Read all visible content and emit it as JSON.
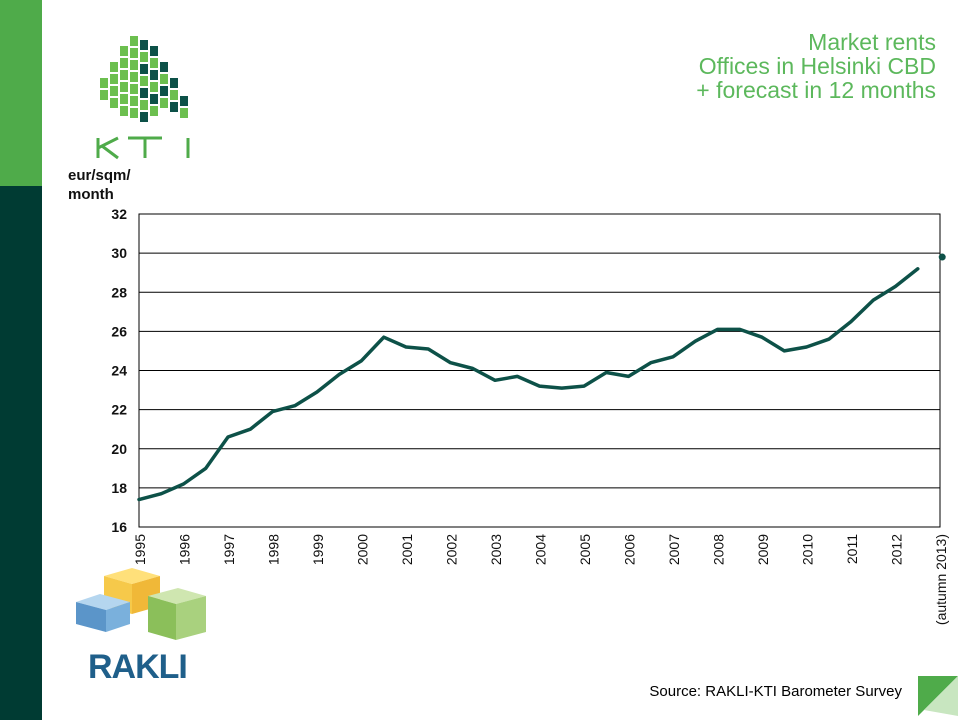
{
  "title": {
    "line1": "Market rents",
    "line2": "Offices in Helsinki CBD",
    "line3": "+ forecast in 12 months"
  },
  "ylabel": {
    "line1": "eur/sqm/",
    "line2": "month"
  },
  "source": "Source: RAKLI-KTI Barometer Survey",
  "logos": {
    "kti": "KTI",
    "rakli": "RAKLI"
  },
  "colors": {
    "line": "#0d5148",
    "title": "#5cb85c",
    "band_top": "#4fab4a",
    "band_bottom": "#003b33"
  },
  "chart_data": {
    "type": "line",
    "title": "Market rents Offices in Helsinki CBD + forecast in 12 months",
    "ylabel": "eur/sqm/month",
    "xlabel": "",
    "ylim": [
      16,
      32
    ],
    "yticks": [
      16,
      18,
      20,
      22,
      24,
      26,
      28,
      30,
      32
    ],
    "xlim": [
      1995,
      2013
    ],
    "grid": true,
    "categories": [
      "1995",
      "1996",
      "1997",
      "1998",
      "1999",
      "2000",
      "2001",
      "2002",
      "2003",
      "2004",
      "2005",
      "2006",
      "2007",
      "2008",
      "2009",
      "2010",
      "2011",
      "2012",
      "(autumn 2013)"
    ],
    "series": [
      {
        "name": "Market rent",
        "x": [
          1995.0,
          1995.5,
          1996.0,
          1996.5,
          1997.0,
          1997.5,
          1998.0,
          1998.5,
          1999.0,
          1999.5,
          2000.0,
          2000.5,
          2001.0,
          2001.5,
          2002.0,
          2002.5,
          2003.0,
          2003.5,
          2004.0,
          2004.5,
          2005.0,
          2005.5,
          2006.0,
          2006.5,
          2007.0,
          2007.5,
          2008.0,
          2008.5,
          2009.0,
          2009.5,
          2010.0,
          2010.5,
          2011.0,
          2011.5,
          2012.0,
          2012.5
        ],
        "values": [
          17.4,
          17.7,
          18.2,
          19.0,
          20.6,
          21.0,
          21.9,
          22.2,
          22.9,
          23.8,
          24.5,
          25.7,
          25.2,
          25.1,
          24.4,
          24.1,
          23.5,
          23.7,
          23.2,
          23.1,
          23.2,
          23.9,
          23.7,
          24.4,
          24.7,
          25.5,
          26.1,
          26.1,
          25.7,
          25.0,
          25.2,
          25.6,
          26.5,
          27.6,
          28.3,
          29.2
        ]
      },
      {
        "name": "Forecast",
        "x": [
          2013.05
        ],
        "values": [
          29.8
        ]
      }
    ]
  }
}
